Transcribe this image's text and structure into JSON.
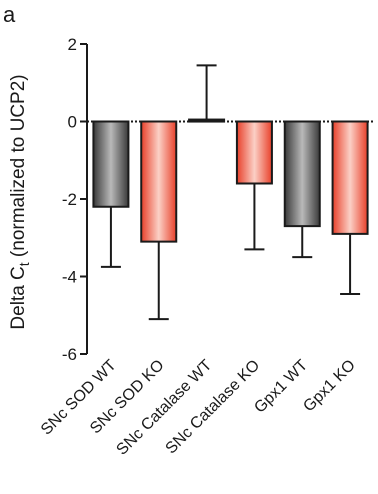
{
  "panel_label": "a",
  "colors": {
    "wt_dark": "#3a3a3a",
    "wt_light": "#b9b9b9",
    "ko_dark": "#e8402a",
    "ko_light": "#fbd0c6",
    "axis": "#1a1a1a"
  },
  "chart_data": {
    "type": "bar",
    "title": "",
    "ylabel_main": "Delta C",
    "ylabel_sub": "t",
    "ylabel_rest": " (normalized to  UCP2)",
    "xlabel": "",
    "categories": [
      "SNc SOD WT",
      "SNc SOD KO",
      "SNc Catalase WT",
      "SNc Catalase KO",
      "Gpx1 WT",
      "Gpx1 KO"
    ],
    "values": [
      -2.2,
      -3.1,
      0.05,
      -1.6,
      -2.7,
      -2.9
    ],
    "error_bars": [
      1.55,
      2.0,
      1.4,
      1.7,
      0.8,
      1.55
    ],
    "bar_style": [
      "wt",
      "ko",
      "wt",
      "ko",
      "wt",
      "ko"
    ],
    "ylim": [
      -6,
      2
    ],
    "yticks": [
      2,
      0,
      -2,
      -4,
      -6
    ],
    "zero_line": "dotted",
    "grid": false,
    "legend": "none"
  }
}
